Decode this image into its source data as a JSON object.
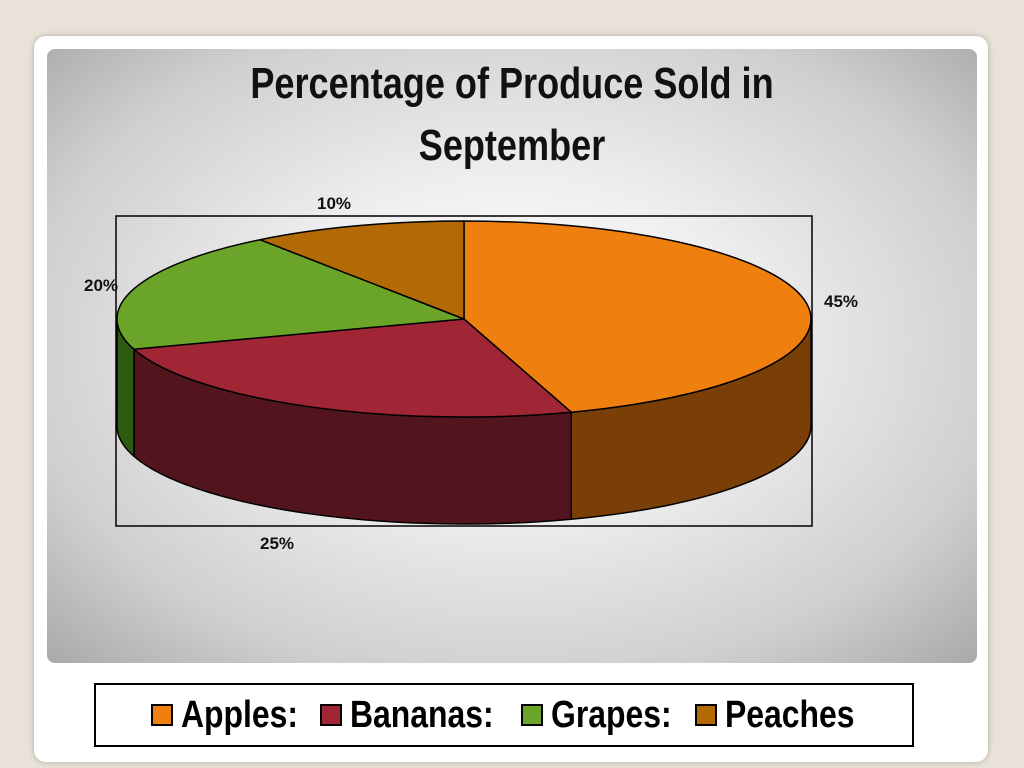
{
  "chart_data": {
    "type": "pie",
    "title_lines": [
      "Percentage of Produce Sold in",
      "September"
    ],
    "slices": [
      {
        "name": "Apples",
        "value": 45,
        "label": "45%",
        "color": "#ef7f0f",
        "side_color": "#7a3f06"
      },
      {
        "name": "Bananas",
        "value": 25,
        "label": "25%",
        "color": "#a02636",
        "side_color": "#52151d"
      },
      {
        "name": "Grapes",
        "value": 20,
        "label": "20%",
        "color": "#6aa52a",
        "side_color": "#2f5a12"
      },
      {
        "name": "Peaches",
        "value": 10,
        "label": "10%",
        "color": "#b36a05",
        "side_color": "#5a3503"
      }
    ],
    "legend": {
      "placement": "bottom",
      "entries": [
        "Apples:",
        "Bananas:",
        "Grapes:",
        "Peaches"
      ]
    }
  }
}
